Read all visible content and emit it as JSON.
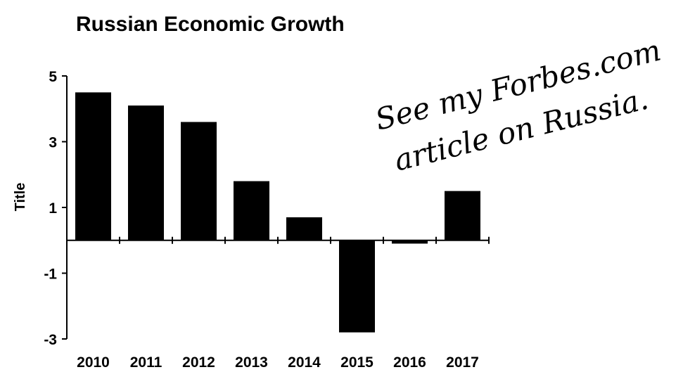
{
  "chart_data": {
    "type": "bar",
    "title": "Russian Economic Growth",
    "ylabel": "Title",
    "xlabel": "",
    "categories": [
      "2010",
      "2011",
      "2012",
      "2013",
      "2014",
      "2015",
      "2016",
      "2017"
    ],
    "values": [
      4.5,
      4.1,
      3.6,
      1.8,
      0.7,
      -2.8,
      -0.1,
      1.5
    ],
    "ylim": [
      -3,
      5
    ],
    "yticks": [
      "5",
      "3",
      "1",
      "-1",
      "-3"
    ],
    "grid": false,
    "bar_color": "#000000"
  },
  "annotation": {
    "line1": "See my Forbes.com",
    "line2": "article on Russia."
  }
}
